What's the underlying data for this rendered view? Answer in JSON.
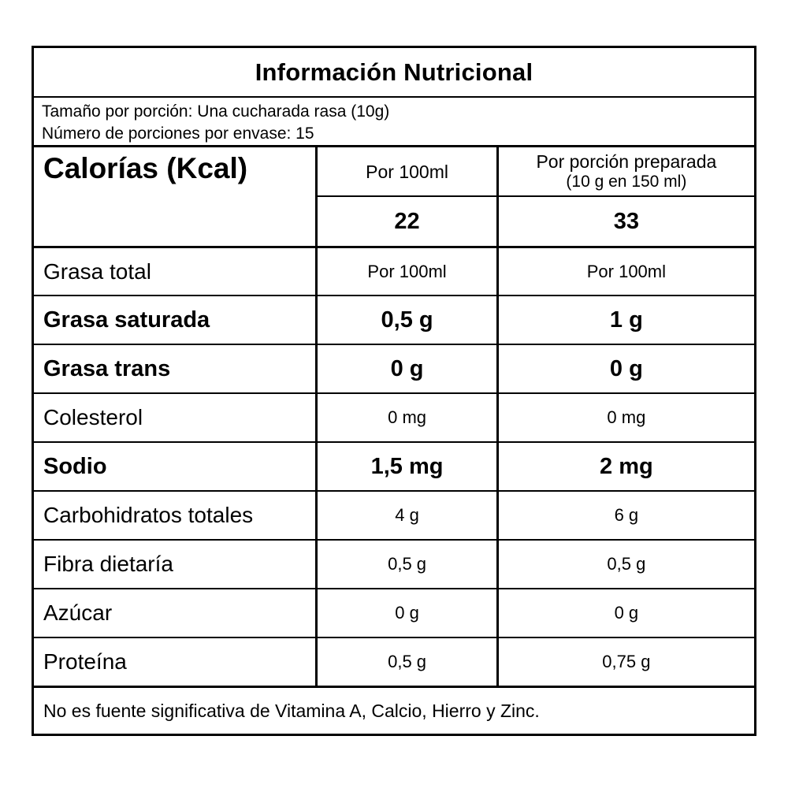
{
  "title": "Información Nutricional",
  "serving": {
    "size_line": "Tamaño por porción: Una cucharada rasa (10g)",
    "count_line": "Número de porciones por envase: 15"
  },
  "calories": {
    "label": "Calorías (Kcal)",
    "col_per_100ml_header": "Por 100ml",
    "col_per_portion_header_line1": "Por porción preparada",
    "col_per_portion_header_line2": "(10 g en 150 ml)",
    "value_per_100ml": "22",
    "value_per_portion": "33"
  },
  "rows": [
    {
      "label": "Grasa total",
      "per_100ml": "Por 100ml",
      "per_portion": "Por 100ml",
      "bold": false
    },
    {
      "label": "Grasa saturada",
      "per_100ml": "0,5 g",
      "per_portion": "1 g",
      "bold": true
    },
    {
      "label": "Grasa trans",
      "per_100ml": "0 g",
      "per_portion": "0 g",
      "bold": true
    },
    {
      "label": "Colesterol",
      "per_100ml": "0 mg",
      "per_portion": "0 mg",
      "bold": false
    },
    {
      "label": "Sodio",
      "per_100ml": "1,5 mg",
      "per_portion": "2 mg",
      "bold": true
    },
    {
      "label": "Carbohidratos totales",
      "per_100ml": "4 g",
      "per_portion": "6 g",
      "bold": false
    },
    {
      "label": "Fibra dietaría",
      "per_100ml": "0,5 g",
      "per_portion": "0,5 g",
      "bold": false
    },
    {
      "label": "Azúcar",
      "per_100ml": "0 g",
      "per_portion": "0 g",
      "bold": false
    },
    {
      "label": "Proteína",
      "per_100ml": "0,5 g",
      "per_portion": "0,75 g",
      "bold": false
    }
  ],
  "footer_note": "No es fuente significativa de Vitamina A, Calcio, Hierro y Zinc.",
  "colors": {
    "border": "#000000",
    "background": "#ffffff",
    "text": "#000000"
  }
}
